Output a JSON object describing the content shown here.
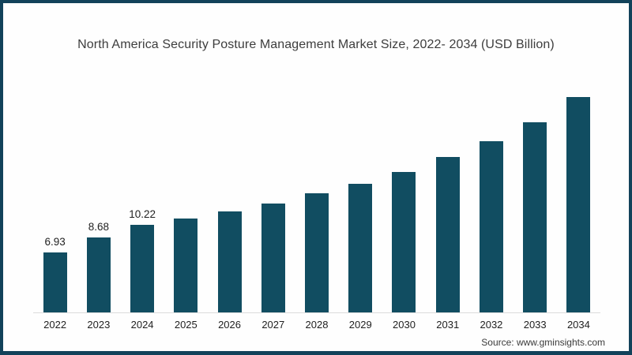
{
  "source": "Source: www.gminsights.com",
  "colors": {
    "bar": "#114d61",
    "frame_border": "#12425a",
    "axis_line": "#dcdcdc",
    "title_text": "#3d3d3d",
    "label_text": "#1f1f1f",
    "source_text": "#3a3a3a",
    "background": "#fefefe"
  },
  "chart_data": {
    "type": "bar",
    "title": "North America Security Posture Management Market Size, 2022- 2034 (USD Billion)",
    "unit": "USD Billion",
    "categories": [
      "2022",
      "2023",
      "2024",
      "2025",
      "2026",
      "2027",
      "2028",
      "2029",
      "2030",
      "2031",
      "2032",
      "2033",
      "2034"
    ],
    "values": [
      6.93,
      8.68,
      10.22,
      10.95,
      11.7,
      12.65,
      13.85,
      14.9,
      16.3,
      18.1,
      19.85,
      22.1,
      25.0
    ],
    "bar_labels": [
      "6.93",
      "8.68",
      "10.22",
      "",
      "",
      "",
      "",
      "",
      "",
      "",
      "",
      "",
      ""
    ],
    "xlabel": "",
    "ylabel": "",
    "ylim": [
      0,
      27.5
    ],
    "grid": false,
    "legend": false,
    "annotations": "only first three bars carry value labels"
  }
}
